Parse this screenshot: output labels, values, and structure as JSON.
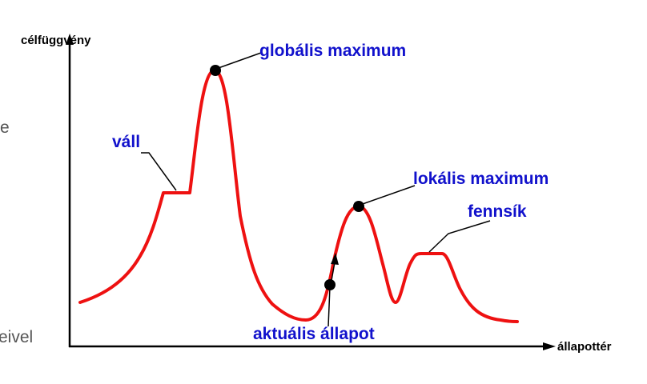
{
  "diagram": {
    "y_axis_label": "célfüggvény",
    "x_axis_label": "állapottér",
    "annotations": {
      "global_max": "globális maximum",
      "shoulder": "váll",
      "local_max": "lokális maximum",
      "plateau": "fennsík",
      "current_state": "aktuális állapot"
    }
  },
  "slide_fragments": {
    "left_top": "e",
    "left_bottom": "eivel"
  },
  "colors": {
    "curve": "#ee1111",
    "annotation_text": "#1111cc",
    "axis": "#000000",
    "slide_text": "#555555"
  }
}
